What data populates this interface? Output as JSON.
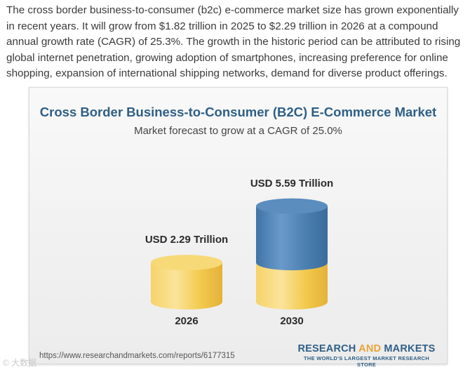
{
  "article": {
    "text": "The cross border business-to-consumer (b2c) e-commerce market size has grown exponentially in recent years. It will grow from $1.82 trillion in 2025 to $2.29 trillion in 2026 at a compound annual growth rate (CAGR) of 25.3%. The growth in the historic period can be attributed to rising global internet penetration, growing adoption of smartphones, increasing preference for online shopping, expansion of international shipping networks, demand for diverse product offerings."
  },
  "card": {
    "title": "Cross Border Business-to-Consumer (B2C) E-Commerce Market",
    "subtitle": "Market forecast to grow at a CAGR of 25.0%",
    "source_url": "https://www.researchandmarkets.com/reports/6177315",
    "brand_part1": "RESEARCH ",
    "brand_accent": "AND",
    "brand_part2": " MARKETS",
    "brand_tagline": "THE WORLD'S LARGEST MARKET RESEARCH STORE"
  },
  "watermark": "© 大数据",
  "colors": {
    "title": "#2f5f86",
    "gold": "#f2c94c",
    "blue": "#4b7fb0"
  },
  "chart_data": {
    "type": "bar",
    "categories": [
      "2026",
      "2030"
    ],
    "values": [
      2.29,
      5.59
    ],
    "value_labels": [
      "USD 2.29 Trillion",
      "USD 5.59 Trillion"
    ],
    "title": "Cross Border Business-to-Consumer (B2C) E-Commerce Market",
    "subtitle": "Market forecast to grow at a CAGR of 25.0%",
    "unit": "USD Trillion"
  }
}
